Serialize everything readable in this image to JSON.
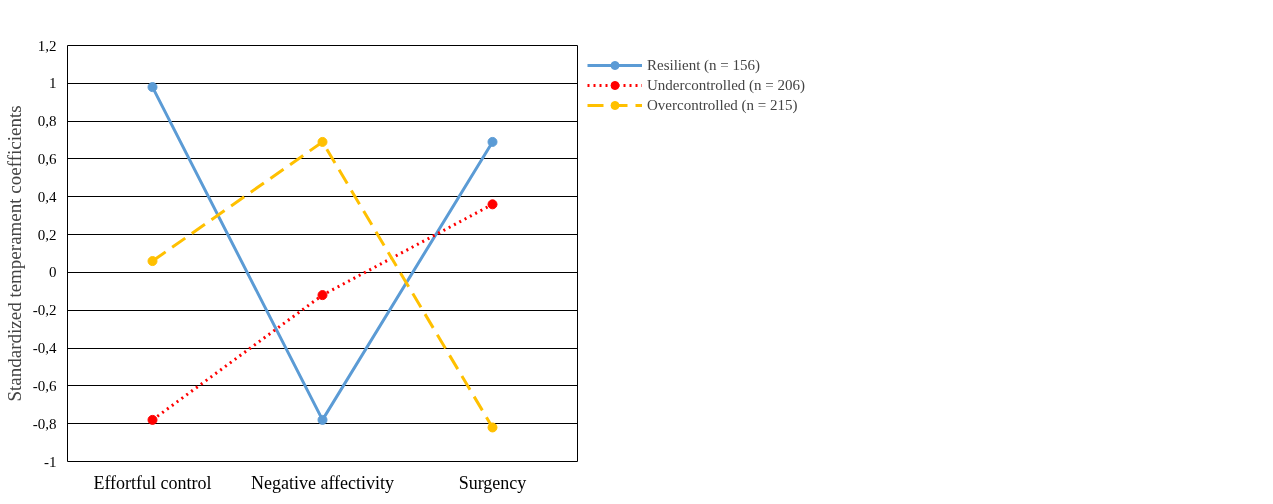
{
  "chart_data": {
    "type": "line",
    "ylabel": "Standardized temperament coefficients",
    "categories": [
      "Effortful control",
      "Negative affectivity",
      "Surgency"
    ],
    "series": [
      {
        "name": "Resilient (n = 156)",
        "color": "#5b9bd5",
        "line_style": "solid",
        "values": [
          0.98,
          -0.78,
          0.69
        ]
      },
      {
        "name": "Undercontrolled (n = 206)",
        "color": "#ff0000",
        "line_style": "dotted",
        "values": [
          -0.78,
          -0.12,
          0.36
        ]
      },
      {
        "name": "Overcontrolled (n = 215)",
        "color": "#ffc000",
        "line_style": "dashed",
        "values": [
          0.06,
          0.69,
          -0.82
        ]
      }
    ],
    "ylim": [
      -1,
      1.2
    ],
    "yticks": [
      {
        "value": -1,
        "label": "-1"
      },
      {
        "value": -0.8,
        "label": "-0,8"
      },
      {
        "value": -0.6,
        "label": "-0,6"
      },
      {
        "value": -0.4,
        "label": "-0,4"
      },
      {
        "value": -0.2,
        "label": "-0,2"
      },
      {
        "value": 0,
        "label": "0"
      },
      {
        "value": 0.2,
        "label": "0,2"
      },
      {
        "value": 0.4,
        "label": "0,4"
      },
      {
        "value": 0.6,
        "label": "0,6"
      },
      {
        "value": 0.8,
        "label": "0,8"
      },
      {
        "value": 1,
        "label": "1"
      },
      {
        "value": 1.2,
        "label": "1,2"
      }
    ],
    "grid": "y",
    "legend": "right",
    "marker": "circle"
  }
}
